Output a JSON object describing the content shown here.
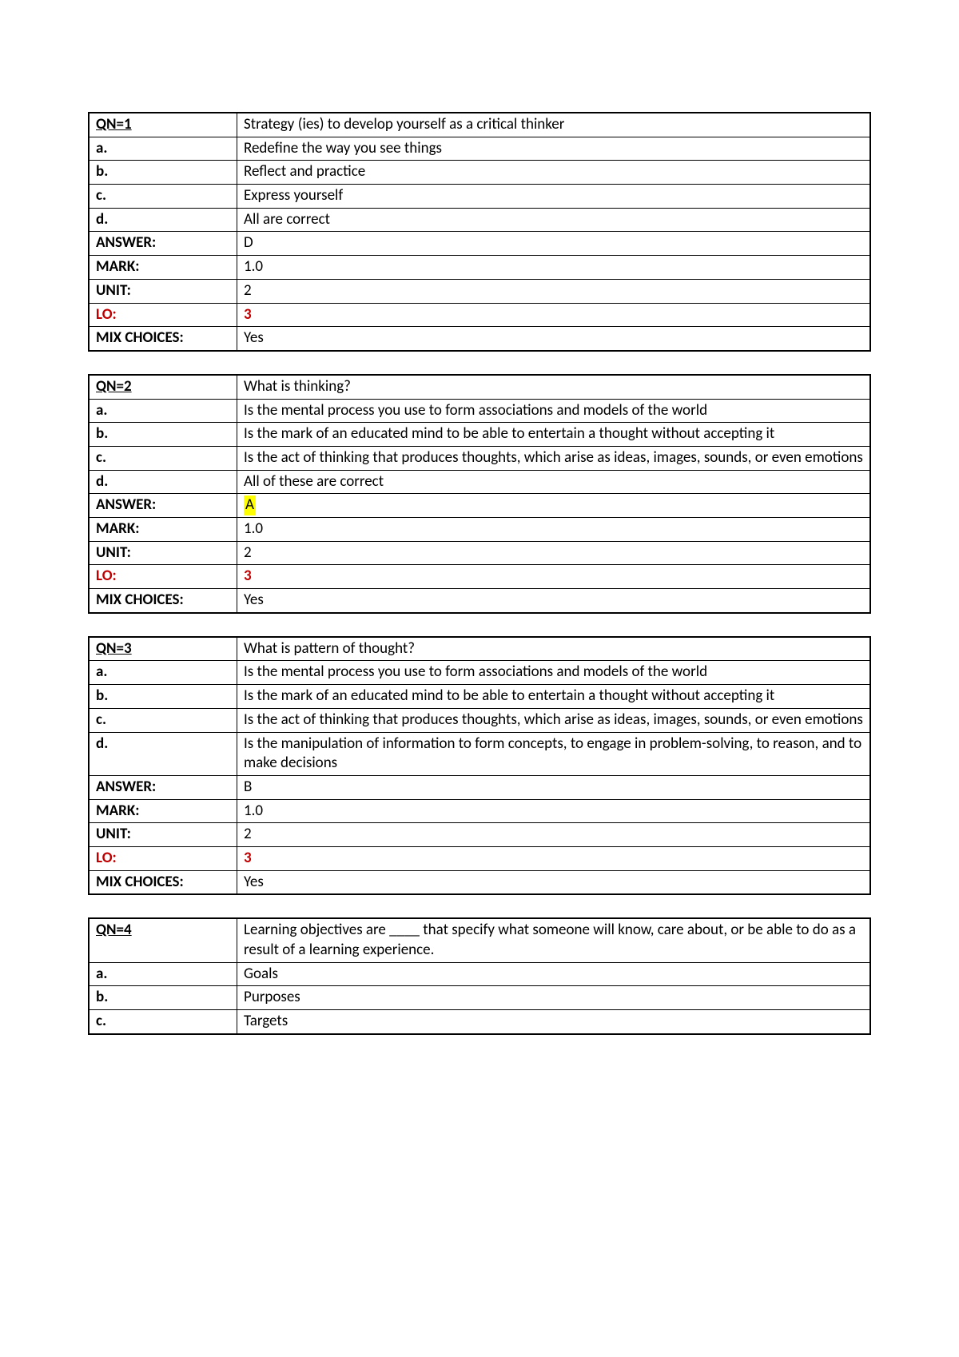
{
  "questions": [
    {
      "qn": "QN=1",
      "question": "Strategy (ies) to develop yourself as a critical thinker",
      "options": {
        "a": "Redefine the way you see things",
        "b": "Reflect and practice",
        "c": "Express yourself",
        "d": "All are correct"
      },
      "answer": "D",
      "answer_highlighted": false,
      "mark": "1.0",
      "unit": "2",
      "lo": "3",
      "mix_choices": "Yes"
    },
    {
      "qn": "QN=2",
      "question": "What is thinking?",
      "options": {
        "a": "Is the mental process you use to form associations and models of the world",
        "b": "Is the mark of an educated mind to be able to entertain a thought without accepting it",
        "c": "Is the act of thinking that produces thoughts, which arise as ideas, images, sounds, or even emotions",
        "d": "All of these are correct"
      },
      "answer": "A",
      "answer_highlighted": true,
      "mark": "1.0",
      "unit": "2",
      "lo": "3",
      "mix_choices": "Yes"
    },
    {
      "qn": "QN=3",
      "question": "What is pattern of thought?",
      "options": {
        "a": "Is the mental process you use to form associations and models of the world",
        "b": "Is the mark of an educated mind to be able to entertain a thought without accepting it",
        "c": "Is the act of thinking that produces thoughts, which arise as ideas, images, sounds, or even emotions",
        "d": "Is the manipulation of information to form concepts, to engage in problem-solving, to reason, and to make decisions"
      },
      "answer": "B",
      "answer_highlighted": false,
      "mark": "1.0",
      "unit": "2",
      "lo": "3",
      "mix_choices": "Yes"
    },
    {
      "qn": "QN=4",
      "question": "Learning objectives are ____ that specify what someone will know, care about, or be able to do as a result of a learning experience.",
      "options": {
        "a": "Goals",
        "b": "Purposes",
        "c": "Targets"
      },
      "partial": true
    }
  ],
  "labels": {
    "a": "a.",
    "b": "b.",
    "c": "c.",
    "d": "d.",
    "answer": "ANSWER:",
    "mark": "MARK:",
    "unit": "UNIT:",
    "lo": "LO:",
    "mix": "MIX CHOICES:"
  }
}
